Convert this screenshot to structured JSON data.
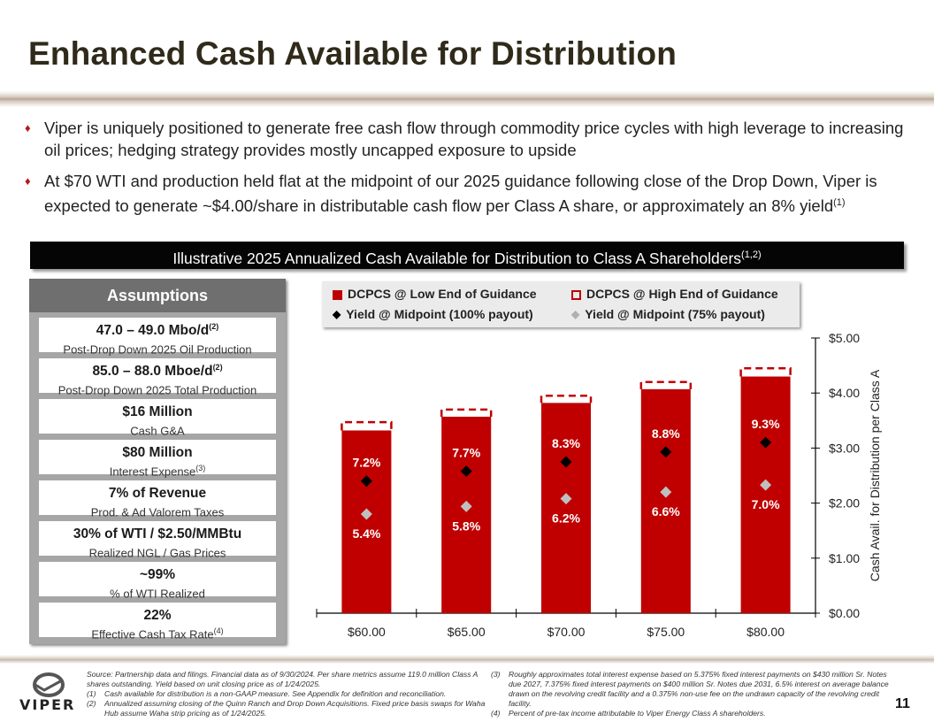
{
  "title": "Enhanced Cash Available for Distribution",
  "bullets": [
    {
      "text": "Viper is uniquely positioned to generate free cash flow through commodity price cycles with high leverage to increasing oil prices; hedging strategy provides mostly uncapped exposure to upside",
      "sup": ""
    },
    {
      "text": "At $70 WTI and production held flat at the midpoint of our 2025 guidance following close of the Drop Down, Viper is expected to generate ~$4.00/share in distributable cash flow per Class A share, or approximately an 8% yield",
      "sup": "(1)"
    }
  ],
  "banner": {
    "text": "Illustrative 2025 Annualized Cash Available for Distribution to Class A Shareholders",
    "sup": "(1,2)"
  },
  "assumptions": {
    "header": "Assumptions",
    "cards": [
      {
        "big": "47.0 – 49.0 Mbo/d",
        "big_sup": "(2)",
        "small": "Post-Drop Down 2025 Oil Production",
        "small_sup": ""
      },
      {
        "big": "85.0 – 88.0 Mboe/d",
        "big_sup": "(2)",
        "small": "Post-Drop Down 2025 Total Production",
        "small_sup": ""
      },
      {
        "big": "$16 Million",
        "big_sup": "",
        "small": "Cash G&A",
        "small_sup": ""
      },
      {
        "big": "$80 Million",
        "big_sup": "",
        "small": "Interest Expense",
        "small_sup": "(3)"
      },
      {
        "big": "7% of Revenue",
        "big_sup": "",
        "small": "Prod. & Ad Valorem Taxes",
        "small_sup": ""
      },
      {
        "big": "30% of WTI / $2.50/MMBtu",
        "big_sup": "",
        "small": "Realized NGL / Gas Prices",
        "small_sup": ""
      },
      {
        "big": "~99%",
        "big_sup": "",
        "small": "% of WTI Realized",
        "small_sup": ""
      },
      {
        "big": "22%",
        "big_sup": "",
        "small": "Effective Cash Tax Rate",
        "small_sup": "(4)"
      }
    ]
  },
  "legend": {
    "low": "DCPCS @ Low End of Guidance",
    "high": "DCPCS @ High End of Guidance",
    "yield100": "Yield @ Midpoint (100% payout)",
    "yield75": "Yield @ Midpoint (75% payout)"
  },
  "chart_data": {
    "type": "bar",
    "categories": [
      "$60.00",
      "$65.00",
      "$70.00",
      "$75.00",
      "$80.00"
    ],
    "series": [
      {
        "name": "DCPCS @ Low End of Guidance",
        "values": [
          3.32,
          3.57,
          3.82,
          4.07,
          4.3
        ]
      },
      {
        "name": "DCPCS @ High End of Guidance",
        "values": [
          3.47,
          3.7,
          3.95,
          4.2,
          4.45
        ]
      },
      {
        "name": "Yield @ Midpoint (100% payout)",
        "values": [
          2.4,
          2.58,
          2.75,
          2.93,
          3.1
        ],
        "labels": [
          "7.2%",
          "7.7%",
          "8.3%",
          "8.8%",
          "9.3%"
        ]
      },
      {
        "name": "Yield @ Midpoint (75% payout)",
        "values": [
          1.8,
          1.94,
          2.08,
          2.2,
          2.33
        ],
        "labels": [
          "5.4%",
          "5.8%",
          "6.2%",
          "6.6%",
          "7.0%"
        ]
      }
    ],
    "ylabel": "Cash Avail. for Distribution per Class A",
    "ylim": [
      0,
      5
    ],
    "yticks": [
      "$0.00",
      "$1.00",
      "$2.00",
      "$3.00",
      "$4.00",
      "$5.00"
    ],
    "ytick_values": [
      0,
      1,
      2,
      3,
      4,
      5
    ],
    "colors": {
      "bar": "#c00000",
      "marker100": "#000000",
      "marker75": "#bfbfbf",
      "label_on_bar": "#ffffff"
    }
  },
  "footnotes": {
    "source": "Source: Partnership data and filings. Financial data as of 9/30/2024. Per share metrics assume 119.0 million Class A shares outstanding. Yield based on unit closing price as of 1/24/2025.",
    "left": [
      {
        "num": "(1)",
        "text": "Cash available for distribution is a non-GAAP measure. See Appendix for definition and reconciliation."
      },
      {
        "num": "(2)",
        "text": "Annualized assuming closing of the Quinn Ranch and Drop Down Acquisitions. Fixed price basis swaps for Waha Hub assume Waha strip pricing as of 1/24/2025."
      }
    ],
    "right": [
      {
        "num": "(3)",
        "text": "Roughly approximates total interest expense based on 5.375% fixed interest payments on $430 million Sr. Notes due 2027, 7.375% fixed interest payments on $400 million Sr. Notes due 2031, 6.5% interest on average balance drawn on the revolving credit facility and a 0.375% non-use fee on the undrawn capacity of the revolving credit facility."
      },
      {
        "num": "(4)",
        "text": "Percent of pre-tax income attributable to Viper Energy Class A shareholders."
      }
    ]
  },
  "logo_text": "VIPER",
  "page_number": "11"
}
